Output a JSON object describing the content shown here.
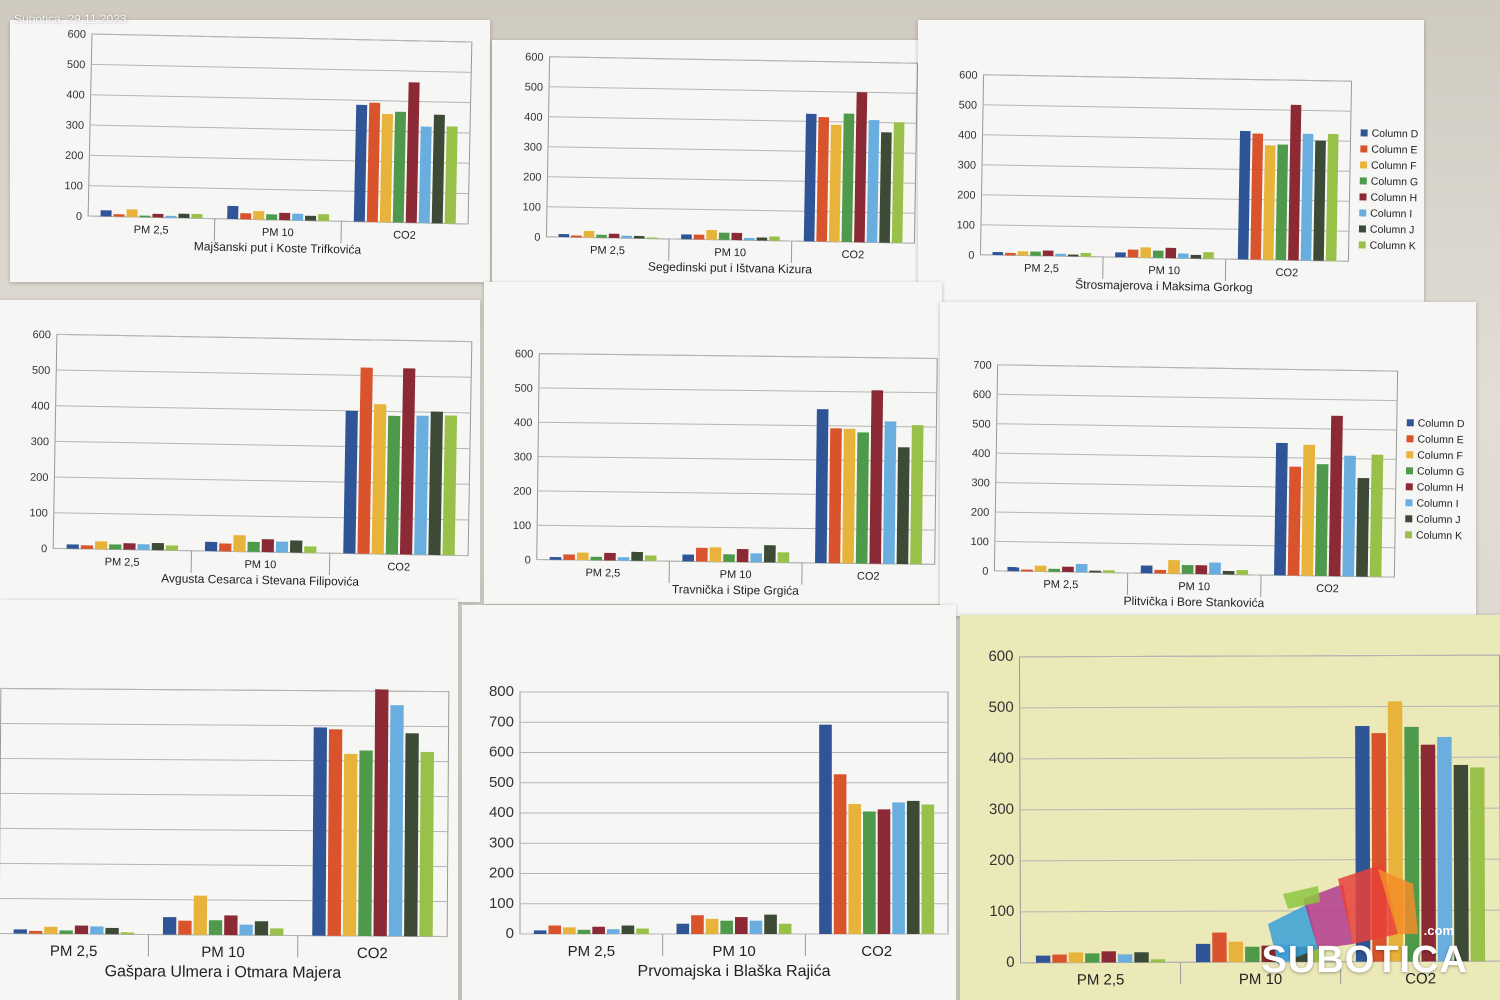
{
  "photo_caption": "Subotica, 29.11.2023.",
  "watermark": {
    "text": "SUBOTICA",
    "suffix": ".com"
  },
  "legend_labels": [
    "Column D",
    "Column E",
    "Column F",
    "Column G",
    "Column H",
    "Column I",
    "Column J",
    "Column K"
  ],
  "series_colors": [
    "#2f5597",
    "#d9532c",
    "#e8b33a",
    "#4f9a4a",
    "#8b2a35",
    "#6aaee0",
    "#3c4a36",
    "#99c14a"
  ],
  "chart_data": [
    {
      "type": "bar",
      "title": "Majšanski put i Koste Trifkovića",
      "categories": [
        "PM 2,5",
        "PM 10",
        "CO2"
      ],
      "yticks": [
        "0",
        "100",
        "200",
        "300",
        "400",
        "500",
        "600"
      ],
      "ylim": [
        0,
        600
      ],
      "legend": "none",
      "values": [
        [
          20,
          8,
          25,
          5,
          12,
          6,
          14,
          14
        ],
        [
          43,
          20,
          28,
          18,
          24,
          22,
          16,
          22
        ],
        [
          385,
          393,
          357,
          365,
          463,
          318,
          358,
          320
        ]
      ]
    },
    {
      "type": "bar",
      "title": "Segedinski put i Ištvana Kizura",
      "categories": [
        "PM 2,5",
        "PM 10",
        "CO2"
      ],
      "yticks": [
        "0",
        "100",
        "200",
        "300",
        "400",
        "500",
        "600"
      ],
      "ylim": [
        0,
        600
      ],
      "legend": "none",
      "values": [
        [
          10,
          6,
          22,
          10,
          14,
          8,
          8,
          4
        ],
        [
          16,
          16,
          32,
          24,
          24,
          8,
          10,
          14
        ],
        [
          425,
          415,
          390,
          428,
          500,
          408,
          368,
          402
        ]
      ]
    },
    {
      "type": "bar",
      "title": "Štrosmajerova i Maksima Gorkog",
      "categories": [
        "PM 2,5",
        "PM 10",
        "CO2"
      ],
      "yticks": [
        "0",
        "100",
        "200",
        "300",
        "400",
        "500",
        "600"
      ],
      "ylim": [
        0,
        600
      ],
      "legend": "right",
      "values": [
        [
          10,
          8,
          14,
          14,
          18,
          8,
          6,
          12
        ],
        [
          16,
          26,
          34,
          24,
          34,
          16,
          12,
          22
        ],
        [
          428,
          420,
          382,
          385,
          518,
          422,
          400,
          423
        ]
      ]
    },
    {
      "type": "bar",
      "title": "Avgusta Cesarca i Stevana Filipovića",
      "categories": [
        "PM 2,5",
        "PM 10",
        "CO2"
      ],
      "yticks": [
        "0",
        "100",
        "200",
        "300",
        "400",
        "500",
        "600"
      ],
      "ylim": [
        0,
        600
      ],
      "legend": "none",
      "values": [
        [
          12,
          10,
          22,
          14,
          18,
          16,
          20,
          14
        ],
        [
          26,
          22,
          46,
          28,
          36,
          30,
          34,
          18
        ],
        [
          400,
          522,
          420,
          388,
          522,
          390,
          402,
          392
        ]
      ]
    },
    {
      "type": "bar",
      "title": "Travnička i Stipe Grgića",
      "categories": [
        "PM 2,5",
        "PM 10",
        "CO2"
      ],
      "yticks": [
        "0",
        "100",
        "200",
        "300",
        "400",
        "500",
        "600"
      ],
      "ylim": [
        0,
        600
      ],
      "legend": "none",
      "values": [
        [
          8,
          16,
          22,
          10,
          22,
          10,
          26,
          16
        ],
        [
          20,
          40,
          42,
          22,
          38,
          26,
          50,
          30
        ],
        [
          448,
          393,
          392,
          382,
          505,
          415,
          340,
          405
        ]
      ]
    },
    {
      "type": "bar",
      "title": "Plitvička i Bore Stankovića",
      "categories": [
        "PM 2,5",
        "PM 10",
        "CO2"
      ],
      "yticks": [
        "0",
        "100",
        "200",
        "300",
        "400",
        "500",
        "600",
        "700"
      ],
      "ylim": [
        0,
        700
      ],
      "legend": "right",
      "values": [
        [
          14,
          6,
          20,
          10,
          18,
          28,
          6,
          8
        ],
        [
          26,
          12,
          46,
          30,
          30,
          40,
          12,
          16
        ],
        [
          450,
          370,
          445,
          380,
          545,
          410,
          335,
          415
        ]
      ]
    },
    {
      "type": "bar",
      "title": "Gašpara Ulmera i Otmara Majera",
      "categories": [
        "PM 2,5",
        "PM 10",
        "CO2"
      ],
      "yticks": [],
      "ylim": [
        0,
        700
      ],
      "legend": "none",
      "values": [
        [
          12,
          8,
          20,
          10,
          24,
          22,
          18,
          6
        ],
        [
          50,
          40,
          112,
          42,
          56,
          30,
          40,
          20
        ],
        [
          595,
          590,
          520,
          530,
          705,
          660,
          580,
          527
        ]
      ]
    },
    {
      "type": "bar",
      "title": "Prvomajska i Blaška Rajića",
      "categories": [
        "PM 2,5",
        "PM 10",
        "CO2"
      ],
      "yticks": [
        "0",
        "100",
        "200",
        "300",
        "400",
        "500",
        "600",
        "700",
        "800"
      ],
      "ylim": [
        0,
        800
      ],
      "legend": "none",
      "values": [
        [
          12,
          28,
          22,
          14,
          24,
          16,
          28,
          18
        ],
        [
          34,
          62,
          50,
          44,
          56,
          44,
          64,
          34
        ],
        [
          692,
          528,
          430,
          405,
          412,
          435,
          440,
          428
        ]
      ]
    },
    {
      "type": "bar",
      "title": "",
      "categories": [
        "PM 2,5",
        "PM 10",
        "CO2"
      ],
      "yticks": [
        "0",
        "100",
        "200",
        "300",
        "400",
        "500",
        "600"
      ],
      "ylim": [
        0,
        600
      ],
      "legend": "none",
      "values": [
        [
          14,
          16,
          20,
          18,
          22,
          16,
          20,
          6
        ],
        [
          36,
          58,
          40,
          30,
          32,
          34,
          30,
          34
        ],
        [
          462,
          448,
          510,
          460,
          425,
          440,
          385,
          380
        ]
      ]
    }
  ]
}
